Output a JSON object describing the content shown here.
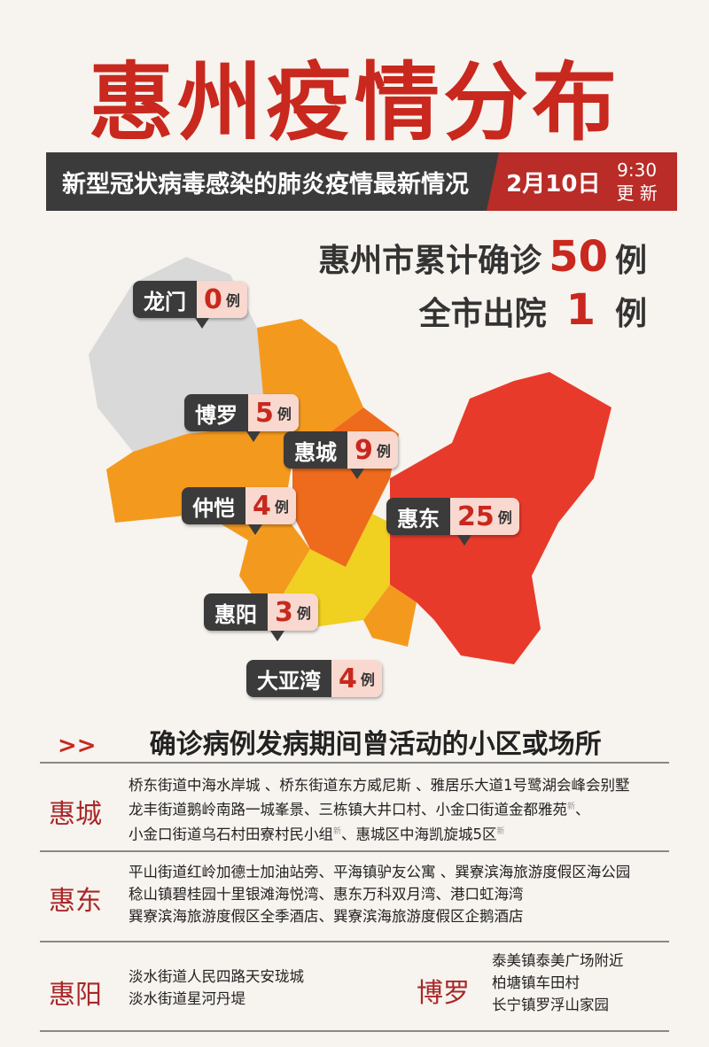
{
  "title": "惠州疫情分布",
  "subtitle": "新型冠状病毒感染的肺炎疫情最新情况",
  "date": "2月10日",
  "time": "9:30",
  "update_label": "更 新",
  "totals": {
    "confirmed_label": "惠州市累计确诊",
    "confirmed": "50",
    "discharged_label": "全市出院",
    "discharged": "1",
    "unit": "例"
  },
  "colors": {
    "accent": "#c8281e",
    "dark": "#3b3b3b",
    "zero": "#d9d9d9",
    "low": "#f0d020",
    "mid": "#f39a1e",
    "high": "#ee6a1c",
    "top": "#e83a2a"
  },
  "districts": [
    {
      "name": "龙门",
      "count": "0",
      "unit": "例"
    },
    {
      "name": "博罗",
      "count": "5",
      "unit": "例"
    },
    {
      "name": "惠城",
      "count": "9",
      "unit": "例"
    },
    {
      "name": "仲恺",
      "count": "4",
      "unit": "例"
    },
    {
      "name": "惠东",
      "count": "25",
      "unit": "例"
    },
    {
      "name": "惠阳",
      "count": "3",
      "unit": "例"
    },
    {
      "name": "大亚湾",
      "count": "4",
      "unit": "例"
    }
  ],
  "section": {
    "arrow": ">>",
    "title": "确诊病例发病期间曾活动的小区或场所"
  },
  "places": [
    {
      "region": "惠城",
      "lines": [
        {
          "text": "桥东街道中海水岸城 、桥东街道东方威尼斯 、雅居乐大道1号鹭湖会峰会别墅",
          "new": ""
        },
        {
          "text": "龙丰街道鹅岭南路一城峯景、三栋镇大井口村、小金口街道金都雅苑",
          "new": "新",
          "tail": "、"
        },
        {
          "text": "小金口街道乌石村田寮村民小组",
          "new": "新",
          "tail": "、惠城区中海凯旋城5区",
          "new2": "新"
        }
      ]
    },
    {
      "region": "惠东",
      "lines": [
        {
          "text": "平山街道红岭加德士加油站旁、平海镇驴友公寓 、巽寮滨海旅游度假区海公园"
        },
        {
          "text": "稔山镇碧桂园十里银滩海悦湾、惠东万科双月湾、港口虹海湾"
        },
        {
          "text": "巽寮滨海旅游度假区全季酒店、巽寮滨海旅游度假区企鹅酒店"
        }
      ]
    },
    {
      "region": "惠阳",
      "lines": [
        {
          "text": "淡水街道人民四路天安珑城"
        },
        {
          "text": "淡水街道星河丹堤"
        }
      ]
    },
    {
      "region": "博罗",
      "lines": [
        {
          "text": "泰美镇泰美广场附近"
        },
        {
          "text": "柏塘镇车田村"
        },
        {
          "text": "长宁镇罗浮山家园"
        }
      ]
    }
  ]
}
